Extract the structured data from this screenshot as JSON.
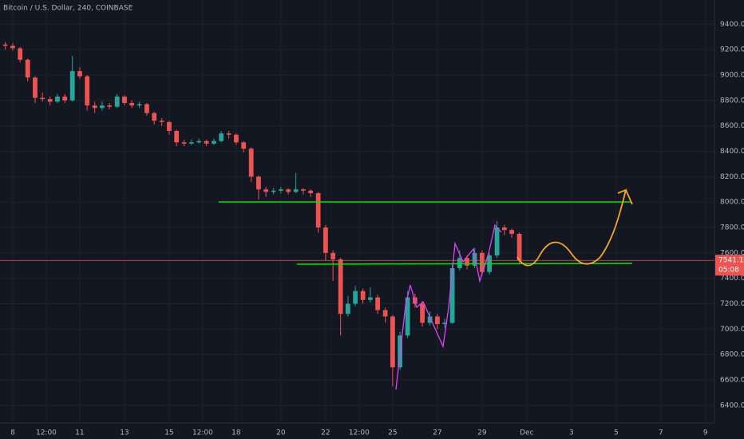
{
  "chart_data": {
    "type": "candlestick",
    "title": "Bitcoin / U.S. Dollar, 240, COINBASE",
    "last_price_label": "7541.10",
    "countdown": "05:08",
    "up_color": "#26a69a",
    "down_color": "#ef5350",
    "grid": true,
    "xlim": [
      -0.57,
      31.4
    ],
    "ylim": [
      6230,
      9590
    ],
    "xticks": [
      {
        "value": 0,
        "label": "8"
      },
      {
        "value": 1.5,
        "label": "12:00"
      },
      {
        "value": 3,
        "label": "11"
      },
      {
        "value": 5,
        "label": "13"
      },
      {
        "value": 7,
        "label": "15"
      },
      {
        "value": 8.5,
        "label": "12:00"
      },
      {
        "value": 10,
        "label": "18"
      },
      {
        "value": 12,
        "label": "20"
      },
      {
        "value": 14,
        "label": "22"
      },
      {
        "value": 15.5,
        "label": "12:00"
      },
      {
        "value": 17,
        "label": "25"
      },
      {
        "value": 19,
        "label": "27"
      },
      {
        "value": 21,
        "label": "29"
      },
      {
        "value": 23,
        "label": "Dec"
      },
      {
        "value": 25,
        "label": "3"
      },
      {
        "value": 27,
        "label": "5"
      },
      {
        "value": 29,
        "label": "7"
      },
      {
        "value": 31,
        "label": "9"
      }
    ],
    "yticks": [
      {
        "value": 6400,
        "label": "6400.00"
      },
      {
        "value": 6600,
        "label": "6600.00"
      },
      {
        "value": 6800,
        "label": "6800.00"
      },
      {
        "value": 7000,
        "label": "7000.00"
      },
      {
        "value": 7200,
        "label": "7200.00"
      },
      {
        "value": 7400,
        "label": "7400.00"
      },
      {
        "value": 7600,
        "label": "7600.00"
      },
      {
        "value": 7800,
        "label": "7800.00"
      },
      {
        "value": 8000,
        "label": "8000.00"
      },
      {
        "value": 8200,
        "label": "8200.00"
      },
      {
        "value": 8400,
        "label": "8400.00"
      },
      {
        "value": 8600,
        "label": "8600.00"
      },
      {
        "value": 8800,
        "label": "8800.00"
      },
      {
        "value": 9000,
        "label": "9000.00"
      },
      {
        "value": 9200,
        "label": "9200.00"
      },
      {
        "value": 9400,
        "label": "9400.00"
      }
    ],
    "x": [
      -0.33,
      0,
      0.33,
      0.67,
      1,
      1.33,
      1.67,
      2,
      2.33,
      2.67,
      3,
      3.33,
      3.67,
      4,
      4.33,
      4.67,
      5,
      5.33,
      5.67,
      6,
      6.33,
      6.67,
      7,
      7.33,
      7.67,
      8,
      8.33,
      8.67,
      9,
      9.33,
      9.67,
      10,
      10.33,
      10.67,
      11,
      11.33,
      11.67,
      12,
      12.33,
      12.67,
      13,
      13.33,
      13.67,
      14,
      14.33,
      14.67,
      15,
      15.33,
      15.67,
      16,
      16.33,
      16.67,
      17,
      17.33,
      17.67,
      18,
      18.33,
      18.67,
      19,
      19.33,
      19.67,
      20,
      20.33,
      20.67,
      21,
      21.33,
      21.67,
      22,
      22.33,
      22.67
    ],
    "open": [
      9240,
      9230,
      9210,
      9120,
      8980,
      8820,
      8810,
      8790,
      8830,
      8800,
      9030,
      8990,
      8760,
      8740,
      8760,
      8750,
      8830,
      8780,
      8760,
      8770,
      8700,
      8640,
      8630,
      8560,
      8470,
      8460,
      8470,
      8480,
      8460,
      8480,
      8540,
      8530,
      8470,
      8420,
      8200,
      8100,
      8080,
      8090,
      8100,
      8080,
      8100,
      8090,
      8070,
      7800,
      7600,
      7550,
      7120,
      7200,
      7300,
      7230,
      7250,
      7150,
      7100,
      6700,
      6950,
      7250,
      7200,
      7050,
      7100,
      7040,
      7050,
      7480,
      7560,
      7500,
      7600,
      7450,
      7580,
      7800,
      7780,
      7750
    ],
    "high": [
      9260,
      9250,
      9220,
      9130,
      8990,
      8860,
      8830,
      8850,
      8850,
      9150,
      9060,
      9000,
      8790,
      8790,
      8780,
      8850,
      8840,
      8800,
      8790,
      8780,
      8710,
      8660,
      8640,
      8570,
      8490,
      8490,
      8500,
      8490,
      8500,
      8560,
      8560,
      8540,
      8480,
      8430,
      8210,
      8120,
      8110,
      8120,
      8110,
      8230,
      8110,
      8100,
      8080,
      7820,
      7620,
      7560,
      7260,
      7340,
      7320,
      7330,
      7270,
      7170,
      7110,
      6980,
      7300,
      7280,
      7220,
      7140,
      7120,
      7080,
      7520,
      7620,
      7580,
      7640,
      7620,
      7600,
      7850,
      7820,
      7790,
      7760
    ],
    "low": [
      9200,
      9190,
      9100,
      8950,
      8780,
      8790,
      8760,
      8780,
      8780,
      8790,
      8970,
      8720,
      8700,
      8720,
      8730,
      8740,
      8760,
      8740,
      8740,
      8680,
      8610,
      8600,
      8530,
      8440,
      8440,
      8450,
      8460,
      8440,
      8450,
      8470,
      8500,
      8450,
      8390,
      8160,
      8020,
      8040,
      8060,
      8070,
      8060,
      8070,
      8060,
      8040,
      7760,
      7540,
      7380,
      6950,
      7100,
      7180,
      7200,
      7210,
      7120,
      7050,
      6550,
      6680,
      6930,
      7170,
      7020,
      7030,
      7000,
      7010,
      7040,
      7460,
      7470,
      7480,
      7420,
      7430,
      7560,
      7740,
      7720,
      7520
    ],
    "close": [
      9230,
      9210,
      9120,
      8980,
      8820,
      8810,
      8790,
      8830,
      8800,
      9030,
      8990,
      8760,
      8740,
      8760,
      8750,
      8830,
      8780,
      8760,
      8770,
      8700,
      8640,
      8630,
      8560,
      8470,
      8460,
      8470,
      8480,
      8460,
      8480,
      8540,
      8530,
      8470,
      8420,
      8200,
      8100,
      8080,
      8090,
      8100,
      8080,
      8100,
      8090,
      8070,
      7800,
      7600,
      7550,
      7120,
      7200,
      7300,
      7230,
      7250,
      7150,
      7100,
      6700,
      6950,
      7250,
      7200,
      7050,
      7100,
      7040,
      7050,
      7480,
      7560,
      7500,
      7600,
      7450,
      7580,
      7800,
      7780,
      7750,
      7541.1
    ]
  }
}
